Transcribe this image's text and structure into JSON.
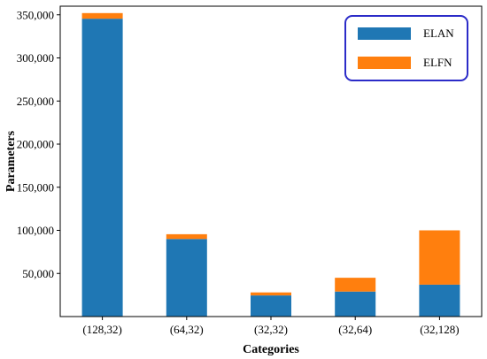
{
  "chart_data": {
    "type": "bar",
    "stacked": true,
    "categories": [
      "(128,32)",
      "(64,32)",
      "(32,32)",
      "(32,64)",
      "(32,128)"
    ],
    "series": [
      {
        "name": "ELAN",
        "color": "#1f77b4",
        "values": [
          345500,
          90000,
          24500,
          29000,
          37000
        ]
      },
      {
        "name": "ELFN",
        "color": "#ff7f0e",
        "values": [
          6500,
          5500,
          3500,
          16000,
          63000
        ]
      }
    ],
    "title": "",
    "xlabel": "Categories",
    "ylabel": "Parameters",
    "ylim": [
      0,
      360000
    ],
    "yticks": [
      {
        "value": 50000,
        "label": "50,000"
      },
      {
        "value": 100000,
        "label": "100,000"
      },
      {
        "value": 150000,
        "label": "150,000"
      },
      {
        "value": 200000,
        "label": "200,000"
      },
      {
        "value": 250000,
        "label": "250,000"
      },
      {
        "value": 300000,
        "label": "300,000"
      },
      {
        "value": 350000,
        "label": "350,000"
      }
    ],
    "grid": false,
    "legend_position": "top-right",
    "legend_border_color": "#2b2bc8"
  }
}
